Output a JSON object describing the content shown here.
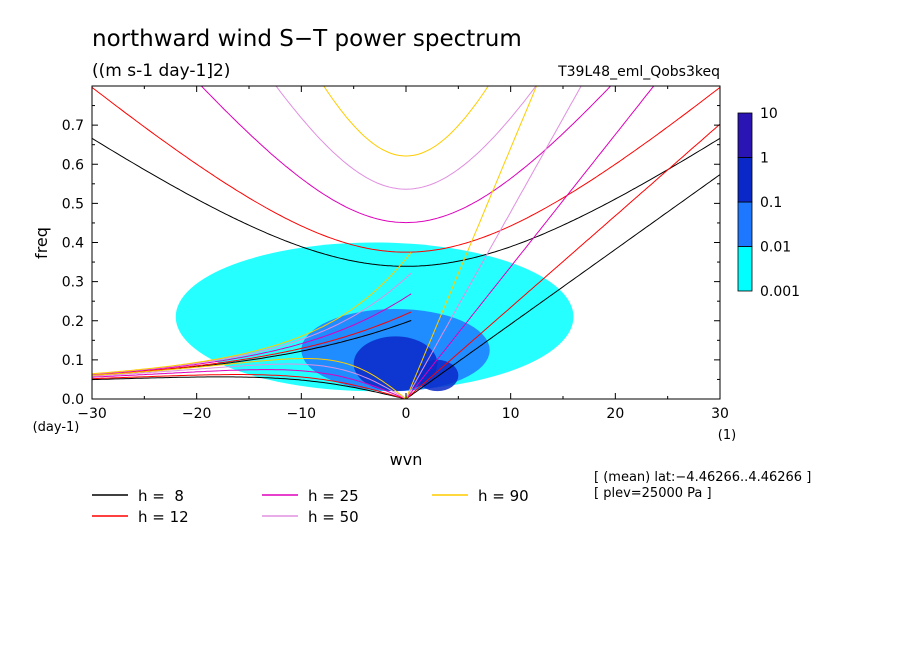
{
  "chart_data": {
    "type": "heatmap",
    "title": "northward wind S−T power spectrum",
    "units": "((m s-1 day-1]2)",
    "experiment": "T39L48_eml_Qobs3keq",
    "xlabel": "wvn",
    "ylabel": "freq",
    "x_unit_label": "(1)",
    "y_unit_label": "(day-1)",
    "xlim": [
      -30,
      30
    ],
    "ylim": [
      0,
      0.8
    ],
    "x_ticks": [
      {
        "v": -30,
        "label": "−30"
      },
      {
        "v": -20,
        "label": "−20"
      },
      {
        "v": -10,
        "label": "−10"
      },
      {
        "v": 0,
        "label": "0"
      },
      {
        "v": 10,
        "label": "10"
      },
      {
        "v": 20,
        "label": "20"
      },
      {
        "v": 30,
        "label": "30"
      }
    ],
    "y_ticks": [
      {
        "v": 0.0,
        "label": "0.0"
      },
      {
        "v": 0.1,
        "label": "0.1"
      },
      {
        "v": 0.2,
        "label": "0.2"
      },
      {
        "v": 0.3,
        "label": "0.3"
      },
      {
        "v": 0.4,
        "label": "0.4"
      },
      {
        "v": 0.5,
        "label": "0.5"
      },
      {
        "v": 0.6,
        "label": "0.6"
      },
      {
        "v": 0.7,
        "label": "0.7"
      }
    ],
    "colorbar": {
      "levels": [
        {
          "label": "0.001"
        },
        {
          "label": "0.01"
        },
        {
          "label": "0.1"
        },
        {
          "label": "1"
        },
        {
          "label": "10"
        }
      ],
      "colors": [
        "#00ffff",
        "#1e78ff",
        "#0a28c8",
        "#2a14b4"
      ]
    },
    "power_regions": [
      {
        "level": 0,
        "x": [
          -22,
          16
        ],
        "y": [
          0.02,
          0.4
        ]
      },
      {
        "level": 1,
        "x": [
          -10,
          8
        ],
        "y": [
          0.02,
          0.23
        ]
      },
      {
        "level": 2,
        "x": [
          -5,
          3
        ],
        "y": [
          0.02,
          0.16
        ]
      },
      {
        "level": 2,
        "x": [
          1,
          5
        ],
        "y": [
          0.02,
          0.1
        ]
      }
    ],
    "dispersion_curves": [
      {
        "h": 8,
        "label": "h =  8",
        "color": "#000000"
      },
      {
        "h": 12,
        "label": "h = 12",
        "color": "#ff0000"
      },
      {
        "h": 25,
        "label": "h = 25",
        "color": "#dd00bb"
      },
      {
        "h": 50,
        "label": "h = 50",
        "color": "#e090e0"
      },
      {
        "h": 90,
        "label": "h = 90",
        "color": "#ffcc00"
      }
    ],
    "annotations": [
      "[ (mean) lat:−4.46266..4.46266 ]",
      "[ plev=25000 Pa ]"
    ]
  }
}
